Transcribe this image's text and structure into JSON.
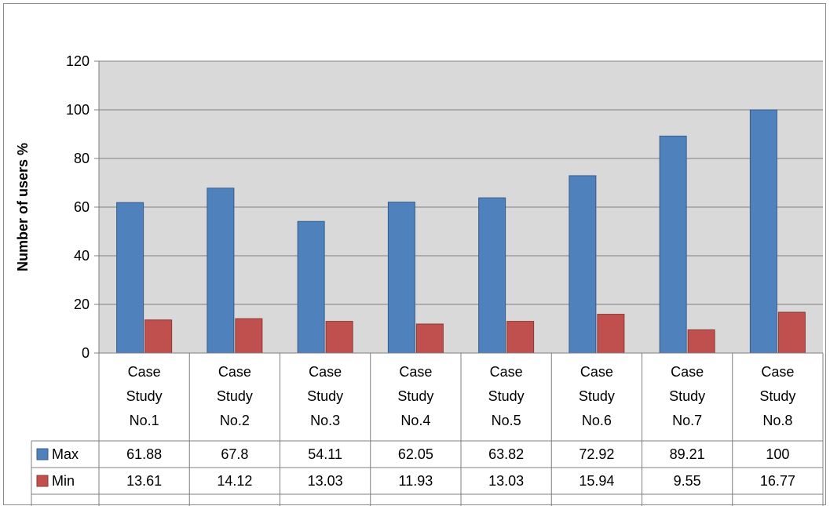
{
  "chart_data": {
    "type": "bar",
    "title": "",
    "xlabel": "",
    "ylabel": "Number of users %",
    "ylim": [
      0,
      120
    ],
    "yticks": [
      0,
      20,
      40,
      60,
      80,
      100,
      120
    ],
    "grid": true,
    "legend": "data-table",
    "categories": [
      [
        "Case",
        "Study",
        "No.1"
      ],
      [
        "Case",
        "Study",
        "No.2"
      ],
      [
        "Case",
        "Study",
        "No.3"
      ],
      [
        "Case",
        "Study",
        "No.4"
      ],
      [
        "Case",
        "Study",
        "No.5"
      ],
      [
        "Case",
        "Study",
        "No.6"
      ],
      [
        "Case",
        "Study",
        "No.7"
      ],
      [
        "Case",
        "Study",
        "No.8"
      ]
    ],
    "series": [
      {
        "name": "Max",
        "color": "#4f81bd",
        "values": [
          61.88,
          67.8,
          54.11,
          62.05,
          63.82,
          72.92,
          89.21,
          100
        ],
        "display": [
          "61.88",
          "67.8",
          "54.11",
          "62.05",
          "63.82",
          "72.92",
          "89.21",
          "100"
        ]
      },
      {
        "name": "Min",
        "color": "#c0504d",
        "values": [
          13.61,
          14.12,
          13.03,
          11.93,
          13.03,
          15.94,
          9.55,
          16.77
        ],
        "display": [
          "13.61",
          "14.12",
          "13.03",
          "11.93",
          "13.03",
          "15.94",
          "9.55",
          "16.77"
        ]
      }
    ]
  }
}
